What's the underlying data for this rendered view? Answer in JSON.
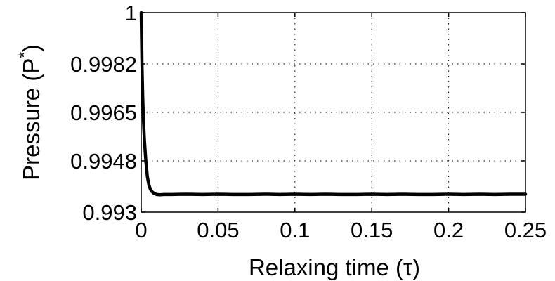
{
  "chart_data": {
    "type": "line",
    "title": "",
    "xlabel": "Relaxing time (τ)",
    "ylabel_main": "Pressure (P",
    "ylabel_sup": "*",
    "ylabel_close": ")",
    "xlim": [
      0,
      0.25
    ],
    "ylim": [
      0.993,
      1
    ],
    "xticks": [
      0,
      0.05,
      0.1,
      0.15,
      0.2,
      0.25
    ],
    "xtick_labels": [
      "0",
      "0.05",
      "0.1",
      "0.15",
      "0.2",
      "0.25"
    ],
    "yticks": [
      0.993,
      0.9948,
      0.9965,
      0.9982,
      1
    ],
    "ytick_labels": [
      "0.993",
      "0.9948",
      "0.9965",
      "0.9982",
      "1"
    ],
    "grid": true,
    "grid_style": "dotted",
    "line_color": "#000000",
    "series": [
      {
        "x": [
          0,
          0.0005,
          0.001,
          0.0015,
          0.002,
          0.003,
          0.004,
          0.005,
          0.006,
          0.007,
          0.008,
          0.009,
          0.01,
          0.012,
          0.015,
          0.02,
          0.03,
          0.04,
          0.05,
          0.06,
          0.07,
          0.08,
          0.09,
          0.1,
          0.11,
          0.12,
          0.13,
          0.14,
          0.15,
          0.16,
          0.17,
          0.18,
          0.19,
          0.2,
          0.21,
          0.22,
          0.23,
          0.24,
          0.25
        ],
        "y": [
          1.0,
          0.9982,
          0.997,
          0.9962,
          0.9956,
          0.9948,
          0.99425,
          0.99395,
          0.9938,
          0.99372,
          0.99367,
          0.99365,
          0.99362,
          0.99361,
          0.99362,
          0.99362,
          0.99363,
          0.99362,
          0.99363,
          0.99362,
          0.99362,
          0.99363,
          0.99362,
          0.99363,
          0.99362,
          0.99363,
          0.99362,
          0.99362,
          0.99363,
          0.99362,
          0.99363,
          0.99362,
          0.99362,
          0.99363,
          0.99362,
          0.99363,
          0.99362,
          0.99363,
          0.99363
        ]
      }
    ]
  }
}
